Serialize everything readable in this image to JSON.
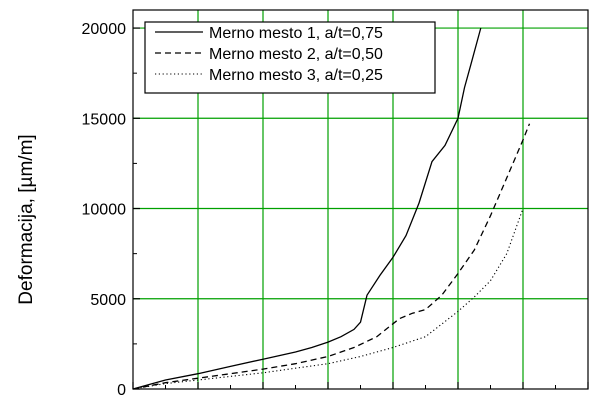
{
  "chart_data": {
    "type": "line",
    "title": "",
    "xlabel": "",
    "ylabel": "Deformacija,  [µm/m]",
    "ylim": [
      0,
      21000
    ],
    "xlim": [
      0,
      14
    ],
    "y_ticks": [
      0,
      5000,
      10000,
      15000,
      20000
    ],
    "y_tick_labels": [
      "0",
      "5000",
      "10000",
      "15000",
      "20000"
    ],
    "x_ticks": [
      0,
      2,
      4,
      6,
      8,
      10,
      12,
      14
    ],
    "grid": true,
    "grid_color": "#00a000",
    "legend_position": "top-left",
    "series": [
      {
        "name": "Merno mesto 1, a/t=0,75",
        "style": "solid",
        "x": [
          0,
          1,
          2,
          3,
          4,
          5,
          5.5,
          6,
          6.4,
          6.8,
          7,
          7.2,
          7.6,
          8,
          8.4,
          8.8,
          9.2,
          9.6,
          10,
          10.2,
          10.4,
          10.7
        ],
        "y": [
          0,
          500,
          850,
          1250,
          1650,
          2050,
          2300,
          2600,
          2900,
          3300,
          3700,
          5200,
          6300,
          7300,
          8500,
          10300,
          12600,
          13500,
          15000,
          16700,
          18000,
          20000
        ]
      },
      {
        "name": "Merno mesto 2, a/t=0,50",
        "style": "dashed",
        "x": [
          0,
          1,
          2,
          3,
          4,
          5,
          6,
          6.8,
          7.5,
          8.2,
          8.6,
          9,
          9.5,
          10,
          10.5,
          11,
          11.5,
          12,
          12.2
        ],
        "y": [
          0,
          350,
          600,
          850,
          1100,
          1400,
          1800,
          2300,
          2900,
          3900,
          4200,
          4400,
          5200,
          6400,
          7700,
          9600,
          11700,
          13800,
          14700
        ]
      },
      {
        "name": "Merno mesto 3, a/t=0,25",
        "style": "dotted",
        "x": [
          0,
          1,
          2,
          3,
          4,
          5,
          6,
          7,
          8,
          9,
          10,
          10.5,
          11,
          11.5,
          12
        ],
        "y": [
          0,
          300,
          500,
          700,
          900,
          1150,
          1400,
          1800,
          2300,
          2900,
          4300,
          5100,
          6000,
          7500,
          10000
        ]
      }
    ]
  }
}
